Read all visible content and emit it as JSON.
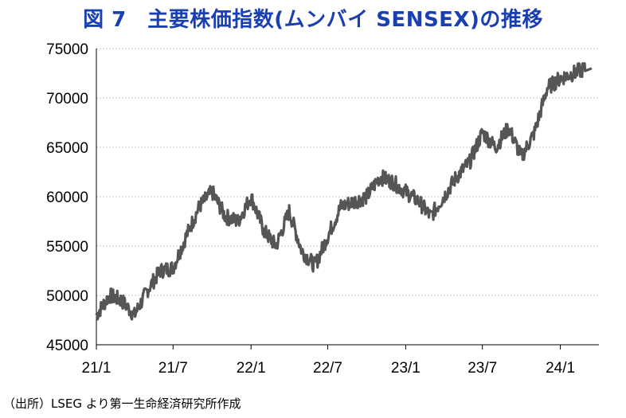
{
  "title": "図 7　主要株価指数(ムンバイ SENSEX)の推移",
  "source": "（出所）LSEG より第一生命経済研究所作成",
  "chart_data": {
    "type": "line",
    "title": "図 7　主要株価指数(ムンバイ SENSEX)の推移",
    "xlabel": "",
    "ylabel": "",
    "ylim": [
      45000,
      75000
    ],
    "yticks": [
      "45000",
      "50000",
      "55000",
      "60000",
      "65000",
      "70000",
      "75000"
    ],
    "xticks": [
      "21/1",
      "21/7",
      "22/1",
      "22/7",
      "23/1",
      "23/7",
      "24/1"
    ],
    "grid": "horizontal dotted",
    "line_color": "#555555",
    "series": [
      {
        "x": [
          "2021-01",
          "2021-02",
          "2021-03",
          "2021-04",
          "2021-05",
          "2021-06",
          "2021-07",
          "2021-08",
          "2021-09",
          "2021-10",
          "2021-11",
          "2021-12",
          "2022-01",
          "2022-02",
          "2022-03",
          "2022-04",
          "2022-05",
          "2022-06",
          "2022-07",
          "2022-08",
          "2022-09",
          "2022-10",
          "2022-11",
          "2022-12",
          "2023-01",
          "2023-02",
          "2023-03",
          "2023-04",
          "2023-05",
          "2023-06",
          "2023-07",
          "2023-08",
          "2023-09",
          "2023-10",
          "2023-11",
          "2023-12",
          "2024-01",
          "2024-02",
          "2024-03"
        ],
        "values": [
          48000,
          50000,
          49500,
          48000,
          50500,
          52500,
          52800,
          56000,
          59000,
          60500,
          58000,
          57500,
          60000,
          56500,
          55000,
          58500,
          54500,
          53000,
          56000,
          59000,
          59500,
          60000,
          62000,
          61500,
          60500,
          59500,
          58000,
          60000,
          62000,
          63500,
          66500,
          65000,
          67000,
          64000,
          66500,
          71000,
          72000,
          72500,
          73000
        ]
      }
    ]
  }
}
